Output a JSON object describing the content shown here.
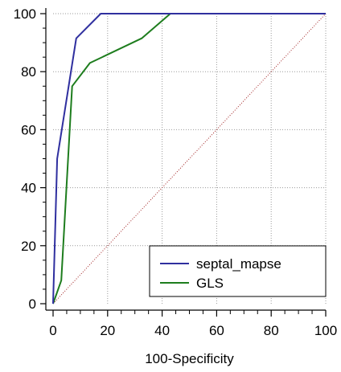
{
  "chart_data": {
    "type": "line",
    "title": "",
    "xlabel": "100-Specificity",
    "ylabel": "",
    "xlim": [
      0,
      100
    ],
    "ylim": [
      0,
      100
    ],
    "x_ticks": [
      0,
      20,
      40,
      60,
      80,
      100
    ],
    "y_ticks": [
      0,
      20,
      40,
      60,
      80,
      100
    ],
    "x_tick_labels": [
      "0",
      "20",
      "40",
      "60",
      "80",
      "100"
    ],
    "y_tick_labels": [
      "0",
      "20",
      "40",
      "60",
      "80",
      "100"
    ],
    "grid": true,
    "legend_position": "bottom-right",
    "series": [
      {
        "name": "septal_mapse",
        "color": "#2f2f9f",
        "points": [
          [
            0,
            0
          ],
          [
            1.5,
            50
          ],
          [
            8.5,
            91.5
          ],
          [
            17.5,
            100
          ],
          [
            100,
            100
          ]
        ]
      },
      {
        "name": "GLS",
        "color": "#1e7d1e",
        "points": [
          [
            0,
            0
          ],
          [
            3,
            8
          ],
          [
            7,
            75
          ],
          [
            13.5,
            83
          ],
          [
            32.5,
            91.5
          ],
          [
            43,
            100
          ],
          [
            100,
            100
          ]
        ]
      }
    ],
    "reference_line": {
      "color": "#a02020",
      "points": [
        [
          0,
          0
        ],
        [
          100,
          100
        ]
      ]
    }
  }
}
